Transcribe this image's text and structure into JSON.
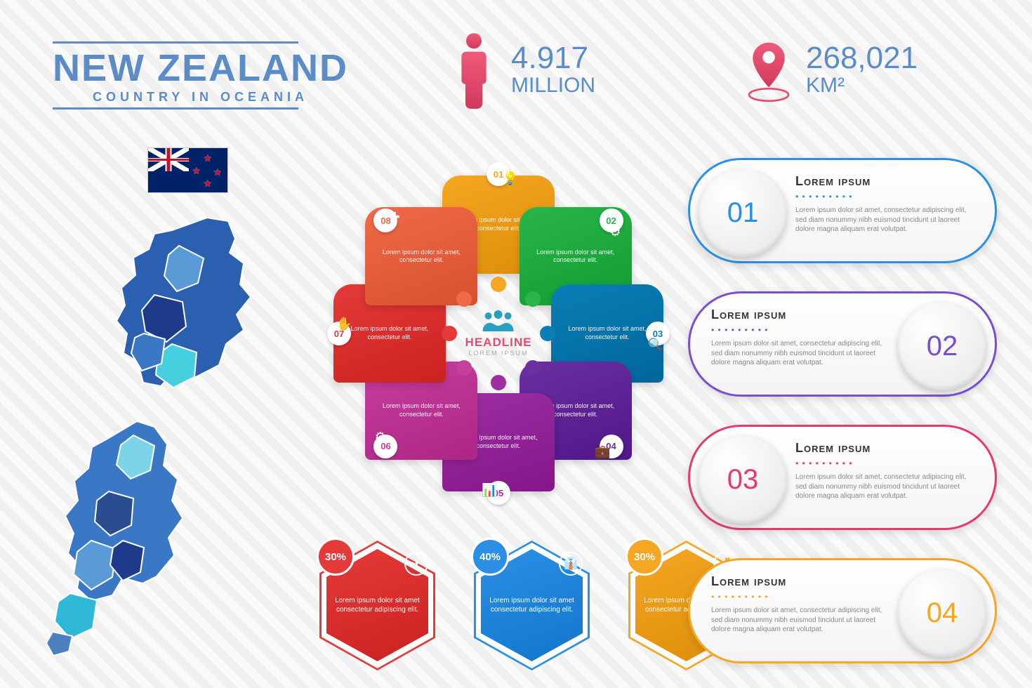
{
  "title": {
    "main": "NEW ZEALAND",
    "sub": "COUNTRY IN OCEANIA",
    "color": "#5b8cc8"
  },
  "flag": {
    "bg": "#012169",
    "stars": 4
  },
  "stats": {
    "population": {
      "value": "4.917",
      "unit": "MILLION",
      "icon_color_top": "#f05a7a",
      "icon_color_bot": "#d13a5a"
    },
    "area": {
      "value": "268,021",
      "unit": "KM²",
      "icon_color_top": "#f05a7a",
      "icon_color_bot": "#d13a5a"
    }
  },
  "map": {
    "palette": [
      "#1e3a8a",
      "#2b5fb0",
      "#3a78c6",
      "#5a9ad6",
      "#2fb9d6",
      "#46d0df",
      "#6fc3df",
      "#2a4d8f",
      "#4b7fc0",
      "#35c6cf"
    ]
  },
  "radial": {
    "center_title": "HEADLINE",
    "center_sub": "LOREM IPSUM",
    "center_color": "#e94b6a",
    "segment_text": "Lorem ipsum dolor sit amet, consectetur elit.",
    "segments": [
      {
        "n": "01",
        "color": "#f5a623",
        "icon": "💡"
      },
      {
        "n": "02",
        "color": "#2ab54a",
        "icon": "⚙"
      },
      {
        "n": "03",
        "color": "#0a7fb5",
        "icon": "🔍"
      },
      {
        "n": "04",
        "color": "#6a2fa0",
        "icon": "💼"
      },
      {
        "n": "05",
        "color": "#9e2fa3",
        "icon": "📊"
      },
      {
        "n": "06",
        "color": "#c63f9e",
        "icon": "⚙"
      },
      {
        "n": "07",
        "color": "#e53a3a",
        "icon": "✋"
      },
      {
        "n": "08",
        "color": "#f06a4a",
        "icon": "✚"
      }
    ]
  },
  "hex": {
    "text": "Lorem ipsum dolor sit amet consectetur adipiscing elit.",
    "items": [
      {
        "pct": "30%",
        "color": "#e53a3a",
        "icon": "✈"
      },
      {
        "pct": "40%",
        "color": "#2a8fe5",
        "icon": "👔"
      },
      {
        "pct": "30%",
        "color": "#f5a623",
        "icon": "💰"
      }
    ]
  },
  "cards": {
    "title": "Lorem ipsum",
    "dots": "• • • • • • • • •",
    "text": "Lorem ipsum dolor sit amet, consectetur adipiscing elit, sed diam nonummy nibh euismod tincidunt ut laoreet dolore magna aliquam erat volutpat.",
    "items": [
      {
        "n": "01",
        "color": "#2a8fe5"
      },
      {
        "n": "02",
        "color": "#7a4fcf"
      },
      {
        "n": "03",
        "color": "#e53a6a"
      },
      {
        "n": "04",
        "color": "#f5a623"
      }
    ]
  }
}
